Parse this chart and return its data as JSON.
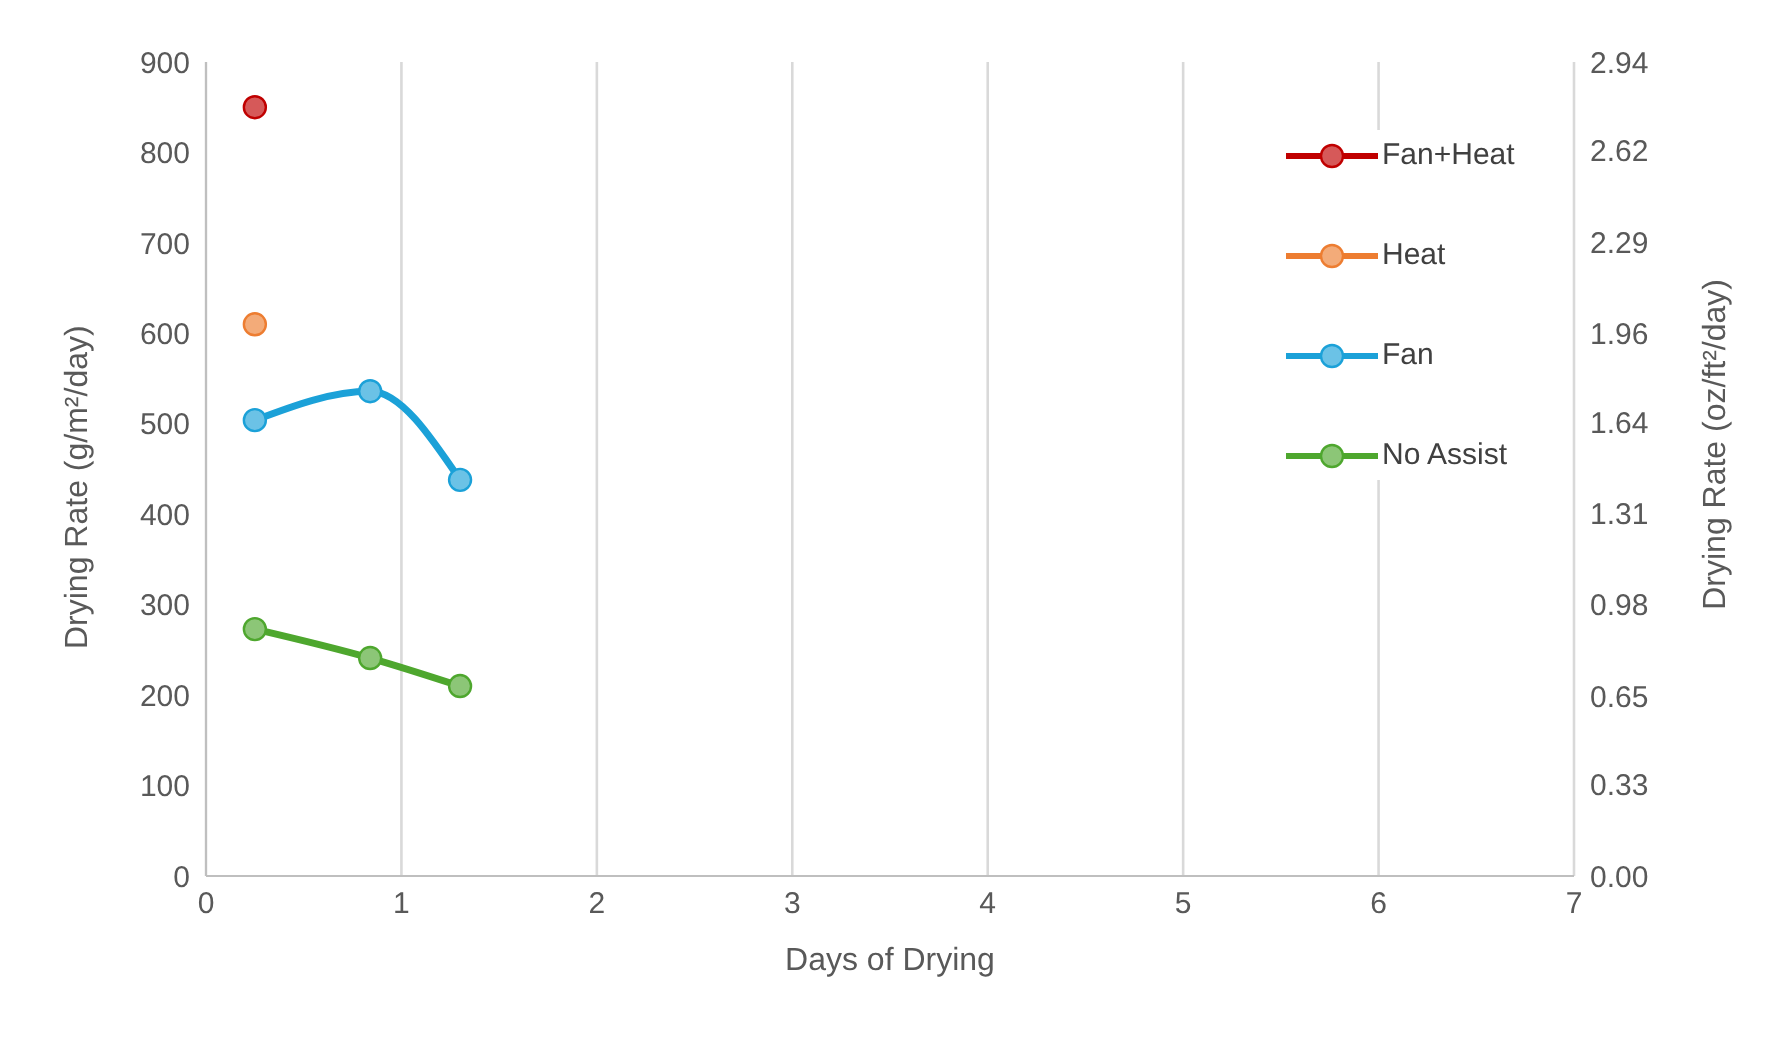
{
  "chart_data": {
    "type": "line",
    "xlabel": "Days of Drying",
    "ylabel": "Drying Rate (g/m²/day)",
    "y2label": "Drying Rate (oz/ft²/day)",
    "xlim": [
      0,
      7
    ],
    "xticks": [
      0,
      1,
      2,
      3,
      4,
      5,
      6,
      7
    ],
    "ylim": [
      0,
      900
    ],
    "yticks": [
      0,
      100,
      200,
      300,
      400,
      500,
      600,
      700,
      800,
      900
    ],
    "y2lim": [
      0,
      2.94
    ],
    "y2ticks": [
      {
        "value": 0,
        "label": "0.00"
      },
      0.33,
      0.65,
      0.98,
      1.31,
      1.64,
      1.96,
      2.29,
      2.62,
      2.94
    ],
    "grid": true,
    "legend": "top right",
    "marker": "circle",
    "line_style": "solid",
    "series": [
      {
        "name": "Fan+Heat",
        "color": "#c00000",
        "x": [
          0.25
        ],
        "values": [
          850
        ]
      },
      {
        "name": "Heat",
        "color": "#ed7d31",
        "x": [
          0.25
        ],
        "values": [
          610
        ]
      },
      {
        "name": "Fan",
        "color": "#1ba1d8",
        "x": [
          0.25,
          0.84,
          1.3
        ],
        "values": [
          504,
          536,
          438
        ]
      },
      {
        "name": "No Assist",
        "color": "#4ea72e",
        "x": [
          0.25,
          0.84,
          1.3
        ],
        "values": [
          273,
          241,
          210
        ]
      }
    ]
  }
}
